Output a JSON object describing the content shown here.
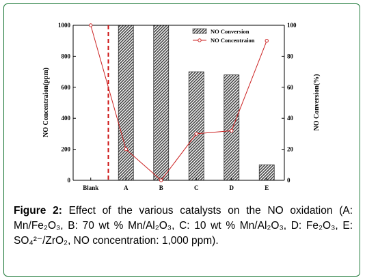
{
  "chart_data": {
    "type": "bar",
    "categories": [
      "Blank",
      "A",
      "B",
      "C",
      "D",
      "E"
    ],
    "series": [
      {
        "name": "NO Conversion",
        "kind": "bar",
        "axis": "right",
        "values": [
          null,
          100,
          100,
          70,
          68,
          10
        ]
      },
      {
        "name": "NO Concentraion",
        "kind": "line",
        "axis": "left",
        "values": [
          1000,
          200,
          0,
          300,
          320,
          900
        ]
      }
    ],
    "ylabel_left": "NO Concentraion(ppm)",
    "ylabel_right": "NO Conversion(%)",
    "ylim_left": [
      0,
      1000
    ],
    "yticks_left": [
      "0",
      "200",
      "400",
      "600",
      "800",
      "1000"
    ],
    "ylim_right": [
      0,
      100
    ],
    "yticks_right": [
      "0",
      "20",
      "40",
      "60",
      "80",
      "100"
    ],
    "grid": false,
    "legend": "top-right",
    "bar_color": "#555555",
    "line_color": "#cc2222",
    "divider_color": "#cc1111"
  },
  "caption": {
    "label": "Figure 2:",
    "text": " Effect of the various catalysts on the NO oxidation (A: Mn/Fe₂O₃, B: 70 wt % Mn/Al₂O₃, C: 10 wt % Mn/Al₂O₃, D: Fe₂O₃, E: SO₄²⁻/ZrO₂, NO concentration: 1,000 ppm)."
  }
}
